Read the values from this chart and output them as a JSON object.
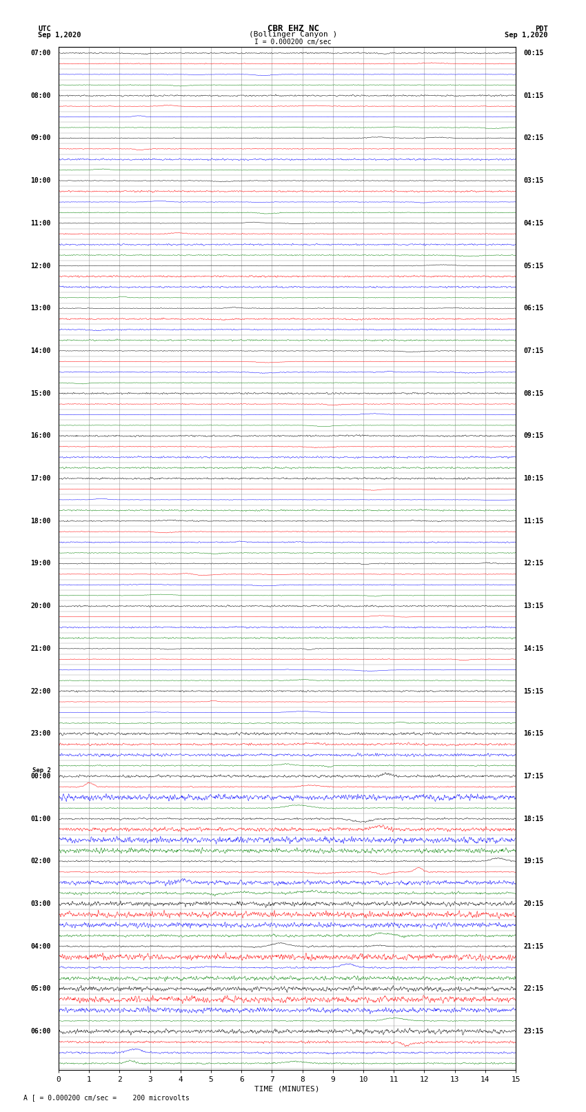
{
  "title_line1": "CBR EHZ NC",
  "title_line2": "(Bollinger Canyon )",
  "scale_label": "I = 0.000200 cm/sec",
  "left_label_top": "UTC",
  "left_label_date": "Sep 1,2020",
  "right_label_top": "PDT",
  "right_label_date": "Sep 1,2020",
  "xlabel": "TIME (MINUTES)",
  "footer_label": "A [ = 0.000200 cm/sec =    200 microvolts",
  "utc_hour_labels": [
    "07:00",
    "08:00",
    "09:00",
    "10:00",
    "11:00",
    "12:00",
    "13:00",
    "14:00",
    "15:00",
    "16:00",
    "17:00",
    "18:00",
    "19:00",
    "20:00",
    "21:00",
    "22:00",
    "23:00",
    "00:00",
    "01:00",
    "02:00",
    "03:00",
    "04:00",
    "05:00",
    "06:00"
  ],
  "pdt_hour_labels": [
    "00:15",
    "01:15",
    "02:15",
    "03:15",
    "04:15",
    "05:15",
    "06:15",
    "07:15",
    "08:15",
    "09:15",
    "10:15",
    "11:15",
    "12:15",
    "13:15",
    "14:15",
    "15:15",
    "16:15",
    "17:15",
    "18:15",
    "19:15",
    "20:15",
    "21:15",
    "22:15",
    "23:15"
  ],
  "sep2_at_hour_index": 17,
  "colors": [
    "black",
    "red",
    "blue",
    "green"
  ],
  "n_hours": 24,
  "traces_per_hour": 4,
  "samples": 1500,
  "xmin": 0,
  "xmax": 15,
  "bg_color": "white",
  "grid_color": "#999999",
  "label_fontsize": 7.0,
  "title_fontsize": 9,
  "axis_label_fontsize": 8,
  "high_amp_hours": [
    17,
    18,
    19,
    20,
    21,
    22,
    23
  ],
  "medium_amp_hours": [
    16,
    23
  ]
}
